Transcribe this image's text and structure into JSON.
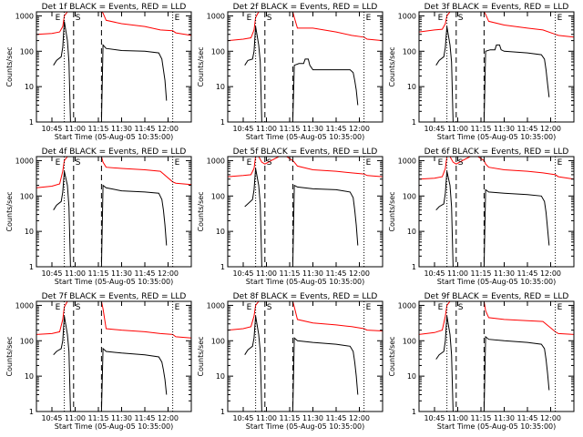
{
  "figure": {
    "xlabel": "Start Time (05-Aug-05 10:35:00)",
    "ylabel": "Counts/sec",
    "x_ticks": [
      "10:45",
      "11:00",
      "11:15",
      "11:30",
      "11:45",
      "12:00"
    ],
    "y_ticks": [
      "1",
      "10",
      "100",
      "1000"
    ],
    "y_scale": "log",
    "colors": {
      "events": "#000000",
      "lld": "#ff0000"
    },
    "markers": {
      "eclipse_start_label": "E",
      "eclipse_end_label": "E",
      "saa_label": "S"
    }
  },
  "chart_data": [
    {
      "type": "line",
      "title": "Det 1f BLACK = Events, RED = LLD",
      "xlim": [
        "10:35",
        "12:15"
      ],
      "ylim": [
        1,
        1300
      ],
      "dotted_x": [
        "10:53",
        "12:03"
      ],
      "dashed_x": [
        "10:59",
        "11:17"
      ],
      "series": [
        {
          "name": "Events",
          "color": "#000000",
          "x": [
            "10:46",
            "10:48",
            "10:51",
            "10:52",
            "10:53",
            "10:55",
            "10:56",
            "10:57",
            "10:59",
            "11:17",
            "11:18",
            "11:20",
            "11:30",
            "11:45",
            "11:54",
            "11:56",
            "11:57",
            "11:58",
            "11:59"
          ],
          "values": [
            40,
            55,
            70,
            130,
            700,
            200,
            50,
            0,
            0,
            0,
            150,
            120,
            105,
            100,
            90,
            60,
            30,
            15,
            4
          ]
        },
        {
          "name": "LLD",
          "color": "#ff0000",
          "x": [
            "10:35",
            "10:45",
            "10:50",
            "10:52",
            "10:53",
            "10:55",
            "10:57",
            "10:59",
            "11:17",
            "11:18",
            "11:20",
            "11:30",
            "11:45",
            "11:55",
            "12:03",
            "12:05",
            "12:15"
          ],
          "values": [
            300,
            320,
            350,
            500,
            1000,
            1300,
            1300,
            1300,
            1300,
            1200,
            750,
            600,
            500,
            400,
            380,
            330,
            280
          ]
        }
      ]
    },
    {
      "type": "line",
      "title": "Det 2f BLACK = Events, RED = LLD",
      "xlim": [
        "10:35",
        "12:15"
      ],
      "ylim": [
        1,
        1300
      ],
      "dotted_x": [
        "10:53",
        "12:03"
      ],
      "dashed_x": [
        "10:59",
        "11:17"
      ],
      "series": [
        {
          "name": "Events",
          "color": "#000000",
          "x": [
            "10:46",
            "10:48",
            "10:51",
            "10:52",
            "10:53",
            "10:55",
            "10:56",
            "10:57",
            "10:59",
            "11:17",
            "11:18",
            "11:21",
            "11:24",
            "11:25",
            "11:27",
            "11:28",
            "11:30",
            "11:45",
            "11:54",
            "11:56",
            "11:57",
            "11:58",
            "11:59"
          ],
          "values": [
            40,
            55,
            60,
            100,
            500,
            150,
            50,
            0,
            0,
            0,
            40,
            45,
            45,
            60,
            60,
            40,
            30,
            30,
            30,
            25,
            15,
            8,
            3
          ]
        },
        {
          "name": "LLD",
          "color": "#ff0000",
          "x": [
            "10:35",
            "10:45",
            "10:50",
            "10:52",
            "10:53",
            "10:55",
            "10:57",
            "10:59",
            "11:17",
            "11:18",
            "11:20",
            "11:30",
            "11:45",
            "11:55",
            "12:03",
            "12:05",
            "12:15"
          ],
          "values": [
            200,
            220,
            240,
            400,
            900,
            1300,
            1300,
            1300,
            1300,
            900,
            450,
            450,
            350,
            280,
            250,
            220,
            200
          ]
        }
      ]
    },
    {
      "type": "line",
      "title": "Det 3f BLACK = Events, RED = LLD",
      "xlim": [
        "10:35",
        "12:15"
      ],
      "ylim": [
        1,
        1300
      ],
      "dotted_x": [
        "10:53",
        "12:03"
      ],
      "dashed_x": [
        "10:59",
        "11:17"
      ],
      "series": [
        {
          "name": "Events",
          "color": "#000000",
          "x": [
            "10:46",
            "10:48",
            "10:51",
            "10:52",
            "10:53",
            "10:55",
            "10:56",
            "10:57",
            "10:59",
            "11:17",
            "11:18",
            "11:21",
            "11:24",
            "11:25",
            "11:27",
            "11:28",
            "11:30",
            "11:45",
            "11:54",
            "11:56",
            "11:57",
            "11:58",
            "11:59"
          ],
          "values": [
            40,
            55,
            70,
            130,
            500,
            150,
            50,
            0,
            0,
            0,
            100,
            110,
            110,
            150,
            150,
            110,
            100,
            90,
            80,
            60,
            30,
            12,
            5
          ]
        },
        {
          "name": "LLD",
          "color": "#ff0000",
          "x": [
            "10:35",
            "10:45",
            "10:50",
            "10:52",
            "10:53",
            "10:55",
            "10:57",
            "10:59",
            "11:17",
            "11:18",
            "11:20",
            "11:30",
            "11:45",
            "11:55",
            "12:03",
            "12:05",
            "12:15"
          ],
          "values": [
            350,
            400,
            420,
            600,
            1000,
            1300,
            1300,
            1300,
            1300,
            1100,
            700,
            550,
            450,
            400,
            300,
            280,
            250
          ]
        }
      ]
    },
    {
      "type": "line",
      "title": "Det 4f BLACK = Events, RED = LLD",
      "xlim": [
        "10:35",
        "12:15"
      ],
      "ylim": [
        1,
        1300
      ],
      "dotted_x": [
        "10:53",
        "12:03"
      ],
      "dashed_x": [
        "10:59",
        "11:17"
      ],
      "series": [
        {
          "name": "Events",
          "color": "#000000",
          "x": [
            "10:46",
            "10:48",
            "10:51",
            "10:52",
            "10:53",
            "10:55",
            "10:56",
            "10:57",
            "10:59",
            "11:17",
            "11:18",
            "11:20",
            "11:30",
            "11:45",
            "11:54",
            "11:56",
            "11:57",
            "11:58",
            "11:59"
          ],
          "values": [
            40,
            55,
            70,
            130,
            500,
            200,
            50,
            0,
            0,
            0,
            200,
            170,
            140,
            130,
            120,
            80,
            40,
            15,
            4
          ]
        },
        {
          "name": "LLD",
          "color": "#ff0000",
          "x": [
            "10:35",
            "10:45",
            "10:50",
            "10:52",
            "10:53",
            "10:55",
            "10:57",
            "10:59",
            "11:17",
            "11:18",
            "11:20",
            "11:30",
            "11:45",
            "11:55",
            "12:03",
            "12:05",
            "12:15"
          ],
          "values": [
            170,
            190,
            220,
            500,
            1000,
            1300,
            1300,
            1300,
            1300,
            900,
            650,
            600,
            550,
            500,
            250,
            230,
            210
          ]
        }
      ]
    },
    {
      "type": "line",
      "title": "Det 5f BLACK = Events, RED = LLD",
      "xlim": [
        "10:35",
        "12:15"
      ],
      "ylim": [
        1,
        1300
      ],
      "dotted_x": [
        "10:53",
        "12:03"
      ],
      "dashed_x": [
        "10:59",
        "11:17"
      ],
      "series": [
        {
          "name": "Events",
          "color": "#000000",
          "x": [
            "10:46",
            "10:48",
            "10:51",
            "10:52",
            "10:53",
            "10:55",
            "10:56",
            "10:57",
            "10:59",
            "11:17",
            "11:18",
            "11:20",
            "11:30",
            "11:45",
            "11:54",
            "11:56",
            "11:57",
            "11:58",
            "11:59"
          ],
          "values": [
            50,
            60,
            80,
            150,
            600,
            200,
            60,
            0,
            0,
            0,
            200,
            180,
            160,
            150,
            130,
            90,
            40,
            15,
            4
          ]
        },
        {
          "name": "LLD",
          "color": "#ff0000",
          "x": [
            "10:35",
            "10:45",
            "10:50",
            "10:52",
            "10:53",
            "10:55",
            "10:57",
            "10:59",
            "11:03",
            "11:08",
            "11:13",
            "11:17",
            "11:18",
            "11:20",
            "11:30",
            "11:45",
            "11:55",
            "12:03",
            "12:05",
            "12:15"
          ],
          "values": [
            350,
            380,
            400,
            600,
            1300,
            1300,
            900,
            800,
            1000,
            1300,
            1300,
            1000,
            900,
            700,
            550,
            500,
            450,
            420,
            380,
            350
          ]
        }
      ]
    },
    {
      "type": "line",
      "title": "Det 6f BLACK = Events, RED = LLD",
      "xlim": [
        "10:35",
        "12:15"
      ],
      "ylim": [
        1,
        1300
      ],
      "dotted_x": [
        "10:53",
        "12:03"
      ],
      "dashed_x": [
        "10:59",
        "11:17"
      ],
      "series": [
        {
          "name": "Events",
          "color": "#000000",
          "x": [
            "10:46",
            "10:48",
            "10:51",
            "10:52",
            "10:53",
            "10:55",
            "10:56",
            "10:57",
            "10:59",
            "11:17",
            "11:18",
            "11:20",
            "11:30",
            "11:45",
            "11:54",
            "11:56",
            "11:57",
            "11:58",
            "11:59"
          ],
          "values": [
            40,
            50,
            60,
            120,
            500,
            200,
            50,
            0,
            0,
            0,
            150,
            130,
            120,
            110,
            100,
            70,
            35,
            12,
            4
          ]
        },
        {
          "name": "LLD",
          "color": "#ff0000",
          "x": [
            "10:35",
            "10:45",
            "10:50",
            "10:52",
            "10:53",
            "10:55",
            "10:57",
            "10:59",
            "11:03",
            "11:08",
            "11:13",
            "11:17",
            "11:18",
            "11:20",
            "11:30",
            "11:45",
            "11:55",
            "12:03",
            "12:05",
            "12:15"
          ],
          "values": [
            300,
            320,
            350,
            600,
            1300,
            1300,
            900,
            800,
            1000,
            1300,
            1300,
            1000,
            800,
            650,
            550,
            500,
            450,
            400,
            350,
            300
          ]
        }
      ]
    },
    {
      "type": "line",
      "title": "Det 7f BLACK = Events, RED = LLD",
      "xlim": [
        "10:35",
        "12:15"
      ],
      "ylim": [
        1,
        1300
      ],
      "dotted_x": [
        "10:53",
        "12:03"
      ],
      "dashed_x": [
        "10:59",
        "11:17"
      ],
      "series": [
        {
          "name": "Events",
          "color": "#000000",
          "x": [
            "10:46",
            "10:48",
            "10:51",
            "10:52",
            "10:53",
            "10:55",
            "10:56",
            "10:57",
            "10:59",
            "11:17",
            "11:18",
            "11:20",
            "11:30",
            "11:45",
            "11:54",
            "11:56",
            "11:57",
            "11:58",
            "11:59"
          ],
          "values": [
            40,
            50,
            60,
            100,
            500,
            150,
            50,
            0,
            0,
            0,
            60,
            50,
            45,
            40,
            35,
            25,
            15,
            8,
            3
          ]
        },
        {
          "name": "LLD",
          "color": "#ff0000",
          "x": [
            "10:35",
            "10:45",
            "10:50",
            "10:52",
            "10:53",
            "10:55",
            "10:57",
            "10:59",
            "11:17",
            "11:18",
            "11:20",
            "11:30",
            "11:45",
            "11:55",
            "12:03",
            "12:05",
            "12:15"
          ],
          "values": [
            150,
            160,
            180,
            400,
            900,
            1300,
            1300,
            1300,
            1300,
            800,
            220,
            200,
            180,
            160,
            150,
            130,
            120
          ]
        }
      ]
    },
    {
      "type": "line",
      "title": "Det 8f BLACK = Events, RED = LLD",
      "xlim": [
        "10:35",
        "12:15"
      ],
      "ylim": [
        1,
        1300
      ],
      "dotted_x": [
        "10:53",
        "12:03"
      ],
      "dashed_x": [
        "10:59",
        "11:17"
      ],
      "series": [
        {
          "name": "Events",
          "color": "#000000",
          "x": [
            "10:46",
            "10:48",
            "10:51",
            "10:52",
            "10:53",
            "10:55",
            "10:56",
            "10:57",
            "10:59",
            "11:17",
            "11:18",
            "11:20",
            "11:30",
            "11:45",
            "11:54",
            "11:56",
            "11:57",
            "11:58",
            "11:59"
          ],
          "values": [
            40,
            55,
            70,
            120,
            500,
            150,
            50,
            0,
            0,
            0,
            120,
            100,
            90,
            80,
            70,
            50,
            25,
            10,
            3
          ]
        },
        {
          "name": "LLD",
          "color": "#ff0000",
          "x": [
            "10:35",
            "10:45",
            "10:50",
            "10:52",
            "10:53",
            "10:55",
            "10:57",
            "10:59",
            "11:17",
            "11:18",
            "11:20",
            "11:30",
            "11:45",
            "11:55",
            "12:03",
            "12:05",
            "12:15"
          ],
          "values": [
            200,
            220,
            250,
            500,
            1000,
            1300,
            1300,
            1300,
            1300,
            900,
            400,
            320,
            280,
            250,
            220,
            200,
            190
          ]
        }
      ]
    },
    {
      "type": "line",
      "title": "Det 9f BLACK = Events, RED = LLD",
      "xlim": [
        "10:35",
        "12:15"
      ],
      "ylim": [
        1,
        1300
      ],
      "dotted_x": [
        "10:53",
        "12:03"
      ],
      "dashed_x": [
        "10:59",
        "11:17"
      ],
      "series": [
        {
          "name": "Events",
          "color": "#000000",
          "x": [
            "10:46",
            "10:48",
            "10:51",
            "10:52",
            "10:53",
            "10:55",
            "10:56",
            "10:57",
            "10:59",
            "11:17",
            "11:18",
            "11:20",
            "11:30",
            "11:45",
            "11:54",
            "11:56",
            "11:57",
            "11:58",
            "11:59"
          ],
          "values": [
            30,
            40,
            50,
            100,
            500,
            150,
            40,
            0,
            0,
            0,
            130,
            110,
            100,
            90,
            80,
            60,
            30,
            12,
            4
          ]
        },
        {
          "name": "LLD",
          "color": "#ff0000",
          "x": [
            "10:35",
            "10:45",
            "10:50",
            "10:52",
            "10:53",
            "10:55",
            "10:57",
            "10:59",
            "11:17",
            "11:18",
            "11:20",
            "11:30",
            "11:45",
            "11:55",
            "12:03",
            "12:05",
            "12:15"
          ],
          "values": [
            150,
            170,
            200,
            500,
            1000,
            1300,
            1300,
            1300,
            1300,
            700,
            450,
            400,
            370,
            350,
            180,
            160,
            150
          ]
        }
      ]
    }
  ]
}
